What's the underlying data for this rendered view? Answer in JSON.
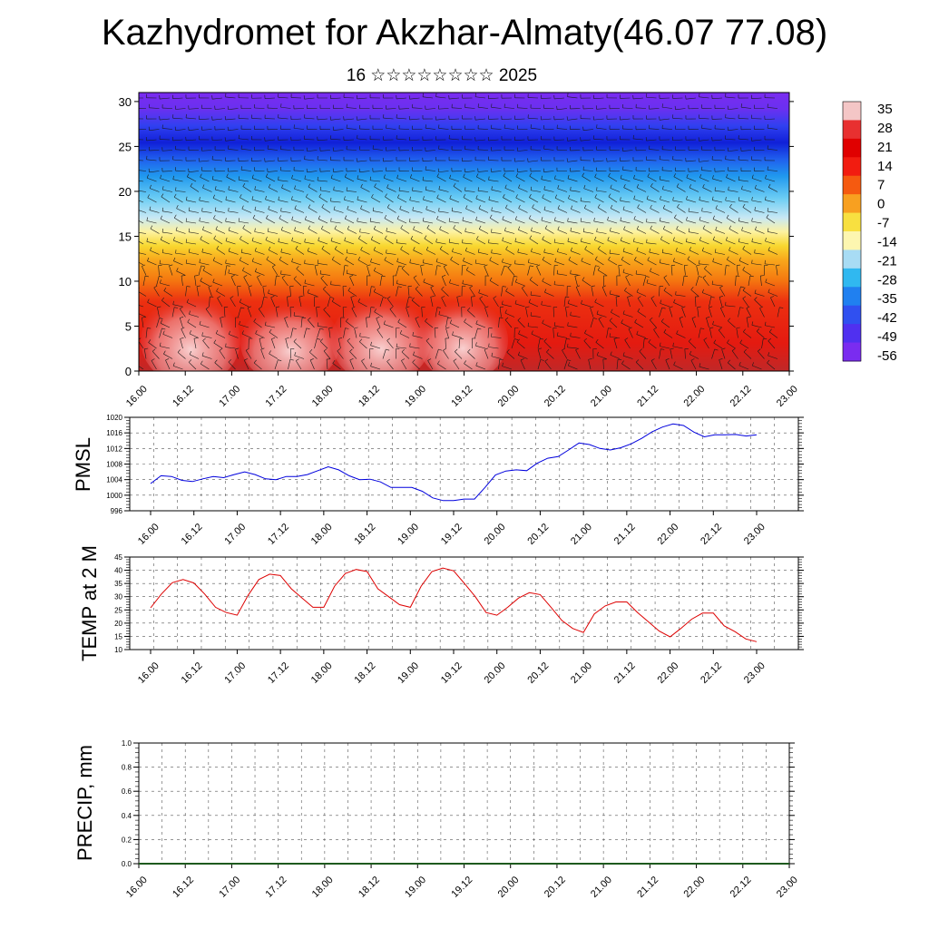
{
  "title": "Kazhydromet for Akzhar-Almaty(46.07 77.08)",
  "subtitle": "16 ☆☆☆☆☆☆☆☆ 2025",
  "colors": {
    "pmsl_line": "#0000dd",
    "temp_line": "#dd0000",
    "precip_line": "#1e5a1e",
    "colorbar_top": "#f4c6c6",
    "colorbar_bottom": "#7a2cf0"
  },
  "chart_data": [
    {
      "type": "heatmap",
      "name": "height-time section",
      "x_tick_labels": [
        "16.00",
        "16.12",
        "17.00",
        "17.12",
        "18.00",
        "18.12",
        "19.00",
        "19.12",
        "20.00",
        "20.12",
        "21.00",
        "21.12",
        "22.00",
        "22.12",
        "23.00"
      ],
      "y_ticks": [
        0,
        5,
        10,
        15,
        20,
        25,
        30
      ],
      "ylim": [
        0,
        31
      ],
      "colorbar_labels": [
        "35",
        "28",
        "21",
        "14",
        "7",
        "0",
        "-7",
        "-14",
        "-21",
        "-28",
        "-35",
        "-42",
        "-49",
        "-56"
      ],
      "colorbar_colors": [
        "#f4c6c6",
        "#e83030",
        "#e00000",
        "#f21c10",
        "#f55a10",
        "#f8a020",
        "#f8e040",
        "#fdf6b0",
        "#a8dcf4",
        "#30b8f0",
        "#2080f0",
        "#3050f0",
        "#5030f0",
        "#7a2cf0"
      ],
      "overlay": "wind barbs"
    },
    {
      "type": "line",
      "ylabel": "PMSL",
      "x_tick_labels": [
        "16.00",
        "16.12",
        "17.00",
        "17.12",
        "18.00",
        "18.12",
        "19.00",
        "19.12",
        "20.00",
        "20.12",
        "21.00",
        "21.12",
        "22.00",
        "22.12",
        "23.00"
      ],
      "y_ticks": [
        996,
        1000,
        1004,
        1008,
        1012,
        1016,
        1020
      ],
      "ylim": [
        996,
        1020
      ],
      "series": [
        {
          "values": [
            1003,
            1005,
            1004.8,
            1003.8,
            1003.5,
            1004.2,
            1004.8,
            1004.5,
            1005.3,
            1006,
            1005.3,
            1004.2,
            1004,
            1004.8,
            1004.8,
            1005.3,
            1006.3,
            1007.3,
            1006.5,
            1005,
            1004,
            1004.1,
            1003.4,
            1002,
            1002,
            1002,
            1001,
            999.3,
            998.6,
            998.6,
            999,
            999,
            1002,
            1005.2,
            1006.2,
            1006.5,
            1006.3,
            1008.2,
            1009.5,
            1009.9,
            1011.6,
            1013.4,
            1013,
            1012,
            1011.6,
            1012.2,
            1013.2,
            1014.6,
            1016.3,
            1017.5,
            1018.3,
            1017.9,
            1016.2,
            1015,
            1015.5,
            1015.5,
            1015.6,
            1015.2,
            1015.5
          ]
        }
      ]
    },
    {
      "type": "line",
      "ylabel": "TEMP at 2 M",
      "x_tick_labels": [
        "16.00",
        "16.12",
        "17.00",
        "17.12",
        "18.00",
        "18.12",
        "19.00",
        "19.12",
        "20.00",
        "20.12",
        "21.00",
        "21.12",
        "22.00",
        "22.12",
        "23.00"
      ],
      "y_ticks": [
        10,
        15,
        20,
        25,
        30,
        35,
        40,
        45
      ],
      "ylim": [
        10,
        45
      ],
      "series": [
        {
          "values": [
            25.8,
            31,
            35.3,
            36.5,
            35.2,
            31,
            26,
            24,
            23,
            30.5,
            36.5,
            38.5,
            38,
            33,
            29.5,
            26,
            26,
            34,
            38.8,
            40.3,
            39.5,
            33,
            30,
            27,
            26,
            34,
            39.5,
            40.8,
            39.8,
            35,
            30,
            24,
            23,
            26,
            29.5,
            31.5,
            30.8,
            26,
            21,
            18,
            16.5,
            23.5,
            26.5,
            28,
            28,
            24,
            20.5,
            17,
            14.8,
            18,
            21.5,
            23.8,
            23.8,
            19,
            16.8,
            14,
            13
          ]
        }
      ]
    },
    {
      "type": "line",
      "ylabel": "PRECIP, mm",
      "x_tick_labels": [
        "16.00",
        "16.12",
        "17.00",
        "17.12",
        "18.00",
        "18.12",
        "19.00",
        "19.12",
        "20.00",
        "20.12",
        "21.00",
        "21.12",
        "22.00",
        "22.12",
        "23.00"
      ],
      "y_tick_labels": [
        "0.0",
        "0.2",
        "0.4",
        "0.6",
        "0.8",
        "1.0"
      ],
      "ylim": [
        0,
        1
      ],
      "series": [
        {
          "values": [
            0,
            0,
            0,
            0,
            0,
            0,
            0,
            0,
            0,
            0,
            0,
            0,
            0,
            0,
            0,
            0,
            0,
            0,
            0,
            0,
            0,
            0,
            0,
            0,
            0,
            0,
            0,
            0,
            0,
            0,
            0,
            0,
            0,
            0,
            0,
            0,
            0,
            0,
            0,
            0,
            0,
            0,
            0,
            0,
            0,
            0,
            0,
            0,
            0,
            0,
            0,
            0,
            0,
            0,
            0,
            0,
            0
          ]
        }
      ]
    }
  ]
}
